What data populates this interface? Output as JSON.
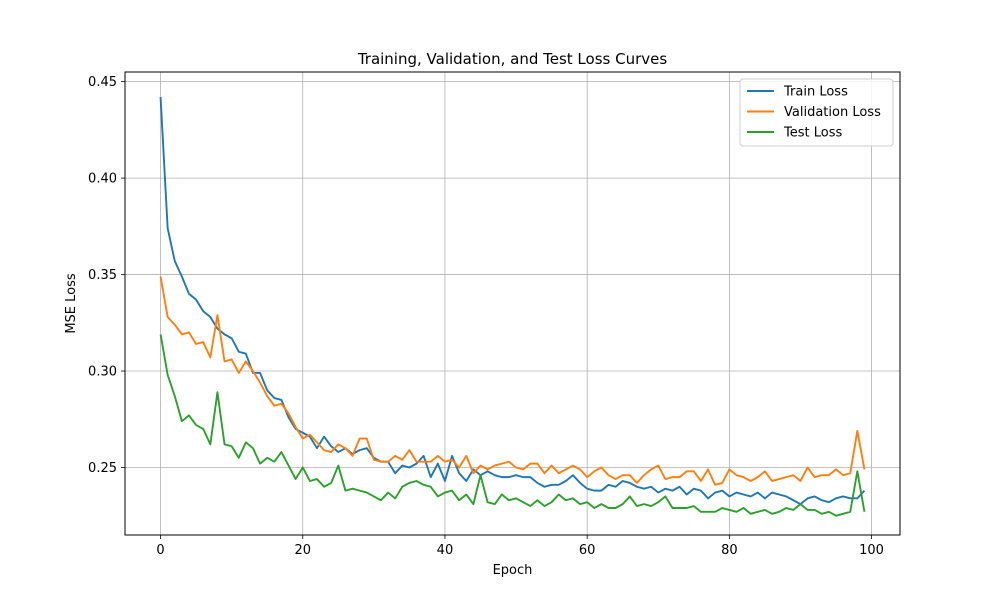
{
  "chart_data": {
    "type": "line",
    "title": "Training, Validation, and Test Loss Curves",
    "xlabel": "Epoch",
    "ylabel": "MSE Loss",
    "xlim": [
      -5,
      104
    ],
    "ylim": [
      0.215,
      0.455
    ],
    "xticks": [
      0,
      20,
      40,
      60,
      80,
      100
    ],
    "yticks": [
      0.25,
      0.3,
      0.35,
      0.4,
      0.45
    ],
    "grid": true,
    "legend_position": "top-right",
    "x": [
      0,
      1,
      2,
      3,
      4,
      5,
      6,
      7,
      8,
      9,
      10,
      11,
      12,
      13,
      14,
      15,
      16,
      17,
      18,
      19,
      20,
      21,
      22,
      23,
      24,
      25,
      26,
      27,
      28,
      29,
      30,
      31,
      32,
      33,
      34,
      35,
      36,
      37,
      38,
      39,
      40,
      41,
      42,
      43,
      44,
      45,
      46,
      47,
      48,
      49,
      50,
      51,
      52,
      53,
      54,
      55,
      56,
      57,
      58,
      59,
      60,
      61,
      62,
      63,
      64,
      65,
      66,
      67,
      68,
      69,
      70,
      71,
      72,
      73,
      74,
      75,
      76,
      77,
      78,
      79,
      80,
      81,
      82,
      83,
      84,
      85,
      86,
      87,
      88,
      89,
      90,
      91,
      92,
      93,
      94,
      95,
      96,
      97,
      98,
      99
    ],
    "series": [
      {
        "name": "Train Loss",
        "color": "#1f77b4",
        "values": [
          0.442,
          0.374,
          0.357,
          0.349,
          0.34,
          0.337,
          0.331,
          0.328,
          0.322,
          0.319,
          0.317,
          0.31,
          0.309,
          0.299,
          0.299,
          0.29,
          0.286,
          0.285,
          0.276,
          0.27,
          0.268,
          0.266,
          0.26,
          0.266,
          0.261,
          0.258,
          0.26,
          0.257,
          0.259,
          0.26,
          0.255,
          0.253,
          0.253,
          0.247,
          0.251,
          0.25,
          0.252,
          0.256,
          0.245,
          0.252,
          0.243,
          0.256,
          0.247,
          0.243,
          0.249,
          0.246,
          0.248,
          0.246,
          0.245,
          0.245,
          0.246,
          0.245,
          0.245,
          0.242,
          0.24,
          0.241,
          0.241,
          0.243,
          0.246,
          0.242,
          0.239,
          0.238,
          0.238,
          0.241,
          0.24,
          0.243,
          0.242,
          0.24,
          0.239,
          0.24,
          0.237,
          0.239,
          0.238,
          0.24,
          0.236,
          0.239,
          0.238,
          0.234,
          0.237,
          0.238,
          0.235,
          0.237,
          0.236,
          0.235,
          0.237,
          0.234,
          0.237,
          0.236,
          0.235,
          0.233,
          0.231,
          0.234,
          0.235,
          0.233,
          0.232,
          0.234,
          0.235,
          0.234,
          0.234,
          0.238
        ]
      },
      {
        "name": "Validation Loss",
        "color": "#ff7f0e",
        "values": [
          0.349,
          0.328,
          0.324,
          0.319,
          0.32,
          0.314,
          0.315,
          0.307,
          0.329,
          0.305,
          0.306,
          0.299,
          0.305,
          0.3,
          0.294,
          0.287,
          0.282,
          0.283,
          0.278,
          0.271,
          0.265,
          0.267,
          0.263,
          0.259,
          0.258,
          0.262,
          0.26,
          0.256,
          0.265,
          0.265,
          0.254,
          0.253,
          0.253,
          0.256,
          0.254,
          0.259,
          0.253,
          0.253,
          0.253,
          0.256,
          0.253,
          0.254,
          0.25,
          0.256,
          0.247,
          0.251,
          0.249,
          0.251,
          0.252,
          0.253,
          0.25,
          0.249,
          0.252,
          0.252,
          0.247,
          0.251,
          0.247,
          0.249,
          0.251,
          0.249,
          0.245,
          0.248,
          0.25,
          0.246,
          0.244,
          0.246,
          0.246,
          0.242,
          0.246,
          0.249,
          0.251,
          0.244,
          0.245,
          0.245,
          0.248,
          0.248,
          0.243,
          0.249,
          0.241,
          0.242,
          0.249,
          0.246,
          0.245,
          0.243,
          0.245,
          0.248,
          0.243,
          0.244,
          0.245,
          0.246,
          0.243,
          0.25,
          0.245,
          0.246,
          0.246,
          0.249,
          0.246,
          0.247,
          0.269,
          0.249
        ]
      },
      {
        "name": "Test Loss",
        "color": "#2ca02c",
        "values": [
          0.319,
          0.298,
          0.287,
          0.274,
          0.277,
          0.272,
          0.27,
          0.262,
          0.289,
          0.262,
          0.261,
          0.255,
          0.263,
          0.26,
          0.252,
          0.255,
          0.253,
          0.258,
          0.251,
          0.244,
          0.25,
          0.243,
          0.244,
          0.24,
          0.242,
          0.251,
          0.238,
          0.239,
          0.238,
          0.237,
          0.235,
          0.233,
          0.237,
          0.234,
          0.24,
          0.242,
          0.243,
          0.241,
          0.24,
          0.235,
          0.237,
          0.238,
          0.233,
          0.236,
          0.231,
          0.246,
          0.232,
          0.231,
          0.236,
          0.233,
          0.234,
          0.232,
          0.23,
          0.233,
          0.23,
          0.232,
          0.236,
          0.233,
          0.234,
          0.231,
          0.232,
          0.229,
          0.231,
          0.229,
          0.229,
          0.231,
          0.235,
          0.23,
          0.231,
          0.23,
          0.232,
          0.235,
          0.229,
          0.229,
          0.229,
          0.23,
          0.227,
          0.227,
          0.227,
          0.229,
          0.228,
          0.227,
          0.229,
          0.226,
          0.227,
          0.228,
          0.226,
          0.227,
          0.229,
          0.228,
          0.231,
          0.228,
          0.228,
          0.226,
          0.227,
          0.225,
          0.226,
          0.227,
          0.248,
          0.227
        ]
      }
    ]
  }
}
